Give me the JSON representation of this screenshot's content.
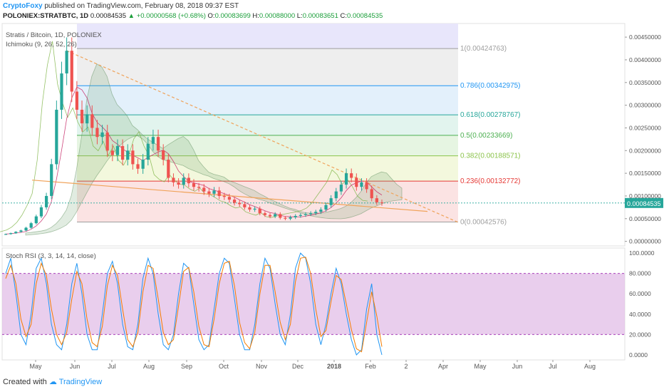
{
  "header": {
    "author": "CryptoFoxy",
    "published_text": "published on TradingView.com, February 08, 2018 09:37 EST",
    "symbol": "POLONIEX:STRATBTC, 1D",
    "last": "0.00084535",
    "change": "▲ +0.00000568 (+0.68%)",
    "o_label": "O:",
    "o": "0.00083699",
    "h_label": "H:",
    "h": "0.00088000",
    "l_label": "L:",
    "l": "0.00083651",
    "c_label": "C:",
    "c": "0.00084535"
  },
  "main_panel": {
    "title": "Stratis / Bitcoin, 1D, POLONIEX",
    "indicator": "Ichimoku (9, 26, 52, 26)",
    "price_tag": "0.00084535"
  },
  "rsi_panel": {
    "title": "Stoch RSI (3, 3, 14, 14, close)"
  },
  "footer": {
    "created_with": "Created with",
    "brand": "TradingView"
  },
  "colors": {
    "candle_up": "#26a69a",
    "candle_down": "#ef5350",
    "rsi_k": "#2196f3",
    "rsi_d": "#f57c00",
    "rsi_band": "#e1bee7",
    "trendline": "#f0a35a",
    "price_tag_bg": "#26a69a"
  },
  "chart_data": [
    {
      "type": "candlestick",
      "title": "Stratis / Bitcoin, 1D, POLONIEX",
      "x_ticks": [
        "May",
        "Jun",
        "Jul",
        "Aug",
        "Sep",
        "Oct",
        "Nov",
        "Dec",
        "2018",
        "Feb",
        "2",
        "Apr",
        "May",
        "Jun",
        "Jul",
        "Aug"
      ],
      "y_ticks": [
        "0.00450000",
        "0.00400000",
        "0.00350000",
        "0.00300000",
        "0.00250000",
        "0.00200000",
        "0.00150000",
        "0.00100000",
        "0.00050000",
        "0.00000000"
      ],
      "ylim": [
        -0.0001,
        0.0048
      ],
      "fibonacci": [
        {
          "level": "1",
          "value": "0.00424763",
          "color": "#9e9e9e",
          "fill": "#eeeeee"
        },
        {
          "level": "0.786",
          "value": "0.00342975",
          "color": "#2196f3",
          "fill": "#e3f0fb"
        },
        {
          "level": "0.618",
          "value": "0.00278767",
          "color": "#26a69a",
          "fill": "#e2f4ee"
        },
        {
          "level": "0.5",
          "value": "0.00233669",
          "color": "#4caf50",
          "fill": "#e6f5e2"
        },
        {
          "level": "0.382",
          "value": "0.00188571",
          "color": "#8bc34a",
          "fill": "#f3f8dd"
        },
        {
          "level": "0.236",
          "value": "0.00132772",
          "color": "#e53935",
          "fill": "#fbe3e3"
        },
        {
          "level": "0",
          "value": "0.00042576",
          "color": "#9e9e9e",
          "fill": ""
        }
      ],
      "close_series": [
        0.00016,
        0.00018,
        0.00021,
        0.00024,
        0.0003,
        0.0004,
        0.00055,
        0.00075,
        0.001,
        0.0017,
        0.0029,
        0.0037,
        0.0042,
        0.0033,
        0.0029,
        0.0026,
        0.0028,
        0.0025,
        0.0023,
        0.0024,
        0.002,
        0.0019,
        0.0021,
        0.0018,
        0.002,
        0.0017,
        0.0016,
        0.0018,
        0.00215,
        0.0023,
        0.002,
        0.0018,
        0.0014,
        0.0013,
        0.00125,
        0.0014,
        0.00128,
        0.0012,
        0.00118,
        0.0011,
        0.00105,
        0.00112,
        0.001,
        0.00098,
        0.00092,
        0.00085,
        0.00082,
        0.00075,
        0.0007,
        0.00072,
        0.00062,
        0.00058,
        0.00055,
        0.0006,
        0.00052,
        0.0005,
        0.00053,
        0.00056,
        0.00058,
        0.0006,
        0.00062,
        0.00065,
        0.0007,
        0.0008,
        0.00095,
        0.0011,
        0.00125,
        0.0015,
        0.0014,
        0.0012,
        0.0013,
        0.00115,
        0.00095,
        0.00086,
        0.00084535
      ]
    },
    {
      "type": "line",
      "title": "Stoch RSI (3, 3, 14, 14, close)",
      "y_ticks": [
        "100.0000",
        "80.0000",
        "60.0000",
        "40.0000",
        "20.0000",
        "0.0000"
      ],
      "ylim": [
        -5,
        105
      ],
      "band": [
        20,
        80
      ],
      "series": [
        {
          "name": "K",
          "values": [
            80,
            95,
            60,
            20,
            10,
            40,
            85,
            95,
            70,
            30,
            10,
            5,
            30,
            70,
            90,
            60,
            20,
            5,
            5,
            40,
            80,
            92,
            70,
            30,
            8,
            5,
            30,
            75,
            95,
            80,
            40,
            10,
            5,
            20,
            60,
            90,
            85,
            50,
            15,
            5,
            10,
            45,
            80,
            95,
            90,
            55,
            20,
            5,
            5,
            30,
            70,
            95,
            85,
            50,
            20,
            10,
            40,
            85,
            100,
            95,
            70,
            30,
            10,
            30,
            60,
            85,
            70,
            40,
            15,
            0,
            5,
            45,
            70,
            20,
            0
          ]
        },
        {
          "name": "D",
          "values": [
            75,
            88,
            70,
            35,
            18,
            30,
            70,
            90,
            78,
            45,
            20,
            10,
            22,
            55,
            82,
            70,
            35,
            12,
            8,
            28,
            68,
            88,
            78,
            45,
            15,
            8,
            22,
            62,
            88,
            85,
            55,
            22,
            10,
            15,
            48,
            82,
            86,
            62,
            28,
            10,
            8,
            35,
            70,
            90,
            92,
            68,
            32,
            12,
            6,
            22,
            60,
            88,
            88,
            62,
            32,
            15,
            30,
            72,
            95,
            96,
            80,
            45,
            18,
            24,
            52,
            78,
            74,
            50,
            25,
            6,
            3,
            32,
            62,
            38,
            8
          ]
        }
      ]
    }
  ]
}
